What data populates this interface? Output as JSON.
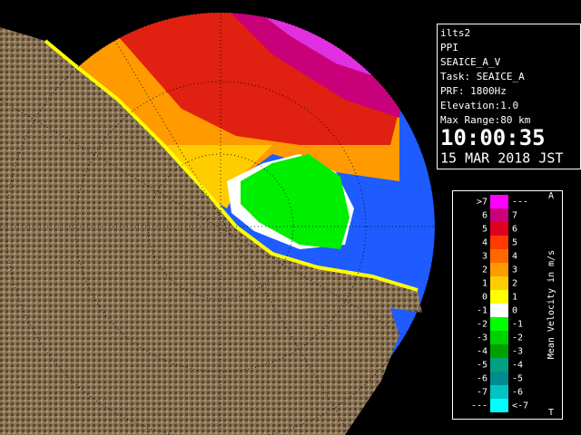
{
  "info": {
    "site": "ilts2",
    "mode": "PPI",
    "product": "SEAICE_A_V",
    "task": "Task: SEAICE_A",
    "prf": "PRF: 1800Hz",
    "elevation": "Elevation:1.0",
    "max_range": "Max Range:80 km",
    "time": "10:00:35",
    "date": "15 MAR 2018 JST"
  },
  "legend": {
    "title": "Mean Velocity in m/s",
    "top_mark": "A",
    "bottom_mark": "T",
    "rows": [
      {
        "low": ">7",
        "high": "---",
        "color": "#ff00ff"
      },
      {
        "low": "6",
        "high": "7",
        "color": "#c8007a"
      },
      {
        "low": "5",
        "high": "6",
        "color": "#e00020"
      },
      {
        "low": "4",
        "high": "5",
        "color": "#ff3a00"
      },
      {
        "low": "3",
        "high": "4",
        "color": "#ff6a00"
      },
      {
        "low": "2",
        "high": "3",
        "color": "#ff9a00"
      },
      {
        "low": "1",
        "high": "2",
        "color": "#ffcc00"
      },
      {
        "low": "0",
        "high": "1",
        "color": "#ffff00"
      },
      {
        "low": "-1",
        "high": "0",
        "color": "#ffffff"
      },
      {
        "low": "-2",
        "high": "-1",
        "color": "#00ff00"
      },
      {
        "low": "-3",
        "high": "-2",
        "color": "#00d000"
      },
      {
        "low": "-4",
        "high": "-3",
        "color": "#00a000"
      },
      {
        "low": "-5",
        "high": "-4",
        "color": "#00a080"
      },
      {
        "low": "-6",
        "high": "-5",
        "color": "#008c8c"
      },
      {
        "low": "-7",
        "high": "-6",
        "color": "#00c4c4"
      },
      {
        "low": "---",
        "high": "<-7",
        "color": "#00ffff"
      }
    ]
  }
}
